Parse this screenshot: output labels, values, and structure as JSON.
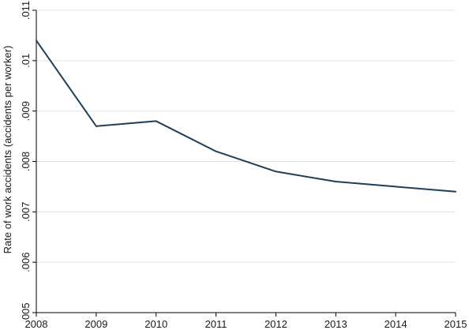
{
  "chart_data": {
    "type": "line",
    "x": [
      2008,
      2009,
      2010,
      2011,
      2012,
      2013,
      2014,
      2015
    ],
    "series": [
      {
        "values": [
          0.0104,
          0.0087,
          0.0088,
          0.0082,
          0.0078,
          0.0076,
          0.0075,
          0.0074
        ]
      }
    ],
    "xlabel": "",
    "ylabel": "Rate of work accidents (accidents per worker)",
    "xlim": [
      2008,
      2015
    ],
    "ylim": [
      0.005,
      0.011
    ],
    "x_ticks": [
      {
        "value": 2008,
        "label": "2008"
      },
      {
        "value": 2009,
        "label": "2009"
      },
      {
        "value": 2010,
        "label": "2010"
      },
      {
        "value": 2011,
        "label": "2011"
      },
      {
        "value": 2012,
        "label": "2012"
      },
      {
        "value": 2013,
        "label": "2013"
      },
      {
        "value": 2014,
        "label": "2014"
      },
      {
        "value": 2015,
        "label": "2015"
      }
    ],
    "y_ticks": [
      {
        "value": 0.005,
        "label": ".005"
      },
      {
        "value": 0.006,
        "label": ".006"
      },
      {
        "value": 0.007,
        "label": ".007"
      },
      {
        "value": 0.008,
        "label": ".008"
      },
      {
        "value": 0.009,
        "label": ".009"
      },
      {
        "value": 0.01,
        "label": ".01"
      },
      {
        "value": 0.011,
        "label": ".011"
      }
    ],
    "grid": true,
    "line_color": "#1c3f5a",
    "grid_color": "#dde4e7"
  }
}
